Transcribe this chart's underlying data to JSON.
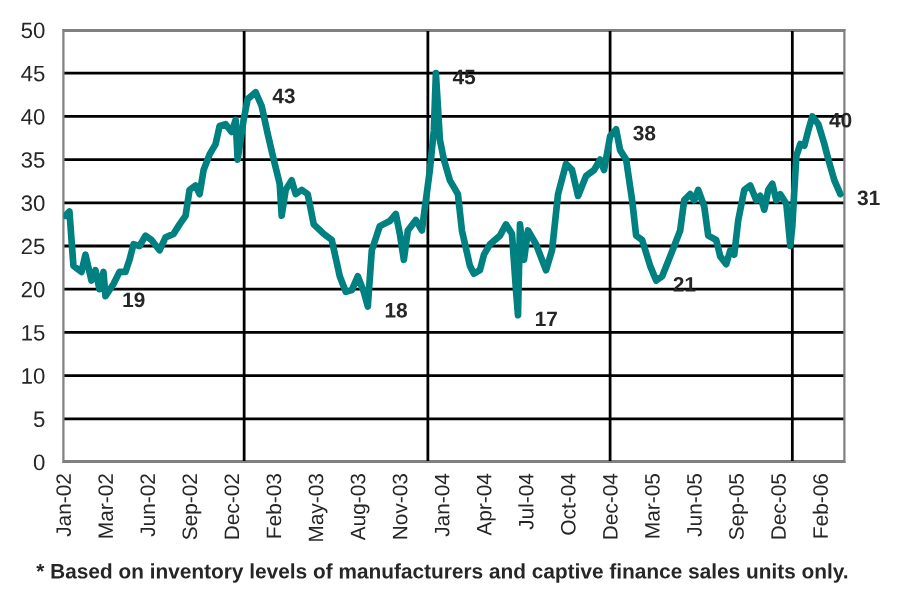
{
  "chart_data": {
    "type": "line",
    "x": [
      "2002-01-04",
      "2002-01-12",
      "2002-01-20",
      "2002-02-05",
      "2002-02-13",
      "2002-02-25",
      "2002-03-05",
      "2002-03-13",
      "2002-03-21",
      "2002-03-25",
      "2002-04-10",
      "2002-04-22",
      "2002-05-04",
      "2002-05-12",
      "2002-05-20",
      "2002-06-01",
      "2002-06-13",
      "2002-06-25",
      "2002-07-11",
      "2002-07-23",
      "2002-08-08",
      "2002-08-20",
      "2002-09-01",
      "2002-09-09",
      "2002-09-21",
      "2002-09-29",
      "2002-10-07",
      "2002-10-19",
      "2002-10-31",
      "2002-11-08",
      "2002-11-20",
      "2002-12-02",
      "2002-12-10",
      "2002-12-14",
      "2002-12-26",
      "2003-01-03",
      "2003-01-19",
      "2003-01-31",
      "2003-02-12",
      "2003-02-24",
      "2003-03-08",
      "2003-03-12",
      "2003-03-20",
      "2003-04-01",
      "2003-04-09",
      "2003-04-21",
      "2003-05-03",
      "2003-05-15",
      "2003-06-04",
      "2003-06-20",
      "2003-07-06",
      "2003-07-18",
      "2003-07-30",
      "2003-08-11",
      "2003-08-23",
      "2003-08-31",
      "2003-09-08",
      "2003-09-24",
      "2003-10-14",
      "2003-10-26",
      "2003-11-03",
      "2003-11-11",
      "2003-11-19",
      "2003-12-05",
      "2003-12-17",
      "2003-12-25",
      "2004-01-02",
      "2004-01-10",
      "2004-01-14",
      "2004-01-22",
      "2004-01-30",
      "2004-02-11",
      "2004-02-27",
      "2004-03-06",
      "2004-03-22",
      "2004-03-30",
      "2004-04-11",
      "2004-04-19",
      "2004-05-01",
      "2004-05-21",
      "2004-06-02",
      "2004-06-14",
      "2004-06-22",
      "2004-06-26",
      "2004-06-30",
      "2004-07-08",
      "2004-07-16",
      "2004-08-01",
      "2004-08-21",
      "2004-09-02",
      "2004-09-14",
      "2004-09-30",
      "2004-10-12",
      "2004-10-24",
      "2004-11-09",
      "2004-11-25",
      "2004-12-07",
      "2004-12-15",
      "2004-12-27",
      "2005-01-08",
      "2005-01-16",
      "2005-01-28",
      "2005-02-09",
      "2005-02-17",
      "2005-03-01",
      "2005-03-17",
      "2005-03-29",
      "2005-04-10",
      "2005-04-26",
      "2005-05-16",
      "2005-05-24",
      "2005-06-05",
      "2005-06-13",
      "2005-06-21",
      "2005-07-03",
      "2005-07-11",
      "2005-07-27",
      "2005-08-04",
      "2005-08-16",
      "2005-08-24",
      "2005-09-01",
      "2005-09-09",
      "2005-09-21",
      "2005-10-03",
      "2005-10-15",
      "2005-10-23",
      "2005-10-31",
      "2005-11-08",
      "2005-11-16",
      "2005-11-24",
      "2005-12-02",
      "2005-12-14",
      "2005-12-22",
      "2005-12-26",
      "2006-01-03",
      "2006-01-11",
      "2006-01-19",
      "2006-01-27",
      "2006-02-04",
      "2006-02-16",
      "2006-02-28",
      "2006-03-08",
      "2006-03-20",
      "2006-04-01"
    ],
    "series": [
      {
        "color": "#008080",
        "values": [
          28.5,
          29.0,
          22.7,
          22.0,
          24.0,
          21.0,
          22.2,
          20.0,
          22.0,
          19.2,
          20.6,
          22.0,
          22.0,
          23.4,
          25.2,
          25.0,
          26.2,
          25.7,
          24.5,
          26.0,
          26.4,
          27.5,
          28.5,
          31.5,
          32.0,
          31.0,
          33.8,
          35.6,
          36.8,
          38.9,
          39.1,
          38.2,
          39.6,
          35.0,
          39.6,
          42.0,
          42.8,
          41.2,
          38.0,
          35.0,
          32.2,
          28.5,
          31.5,
          32.6,
          31.0,
          31.5,
          31.0,
          27.5,
          26.4,
          25.7,
          21.5,
          19.7,
          19.9,
          21.5,
          19.7,
          18.0,
          24.5,
          27.3,
          27.9,
          28.7,
          26.4,
          23.4,
          26.8,
          28.0,
          26.8,
          30.3,
          33.8,
          38.4,
          45.0,
          37.3,
          35.0,
          32.6,
          31.0,
          26.8,
          22.7,
          21.8,
          22.2,
          24.0,
          25.2,
          26.2,
          27.5,
          26.4,
          19.9,
          17.0,
          27.5,
          23.4,
          26.8,
          25.2,
          22.2,
          24.5,
          31.0,
          34.5,
          33.8,
          30.8,
          33.1,
          33.8,
          35.0,
          33.8,
          37.7,
          38.5,
          36.1,
          35.0,
          30.3,
          26.2,
          25.7,
          22.7,
          21.0,
          21.5,
          23.8,
          26.8,
          30.3,
          31.0,
          30.3,
          31.5,
          29.6,
          26.2,
          25.7,
          23.8,
          22.9,
          24.5,
          24.0,
          28.0,
          31.5,
          32.0,
          30.3,
          30.8,
          29.2,
          31.5,
          32.2,
          30.3,
          31.0,
          29.9,
          25.0,
          27.3,
          35.4,
          36.8,
          36.6,
          38.4,
          40.0,
          39.1,
          36.8,
          35.0,
          32.6,
          31.0
        ]
      }
    ],
    "xlim": [
      "2001-12-31",
      "2006-04-09"
    ],
    "xticks": [
      {
        "value": "2002-01-04",
        "label": "Jan-02"
      },
      {
        "value": "2002-03-29",
        "label": "Mar-02"
      },
      {
        "value": "2002-06-21",
        "label": "Jun-02"
      },
      {
        "value": "2002-09-13",
        "label": "Sep-02"
      },
      {
        "value": "2002-12-06",
        "label": "Dec-02"
      },
      {
        "value": "2003-02-28",
        "label": "Feb-03"
      },
      {
        "value": "2003-05-23",
        "label": "May-03"
      },
      {
        "value": "2003-08-15",
        "label": "Aug-03"
      },
      {
        "value": "2003-11-07",
        "label": "Nov-03"
      },
      {
        "value": "2004-01-30",
        "label": "Jan-04"
      },
      {
        "value": "2004-04-23",
        "label": "Apr-04"
      },
      {
        "value": "2004-07-16",
        "label": "Jul-04"
      },
      {
        "value": "2004-10-08",
        "label": "Oct-04"
      },
      {
        "value": "2004-12-31",
        "label": "Dec-04"
      },
      {
        "value": "2005-03-25",
        "label": "Mar-05"
      },
      {
        "value": "2005-06-17",
        "label": "Jun-05"
      },
      {
        "value": "2005-09-09",
        "label": "Sep-05"
      },
      {
        "value": "2005-12-02",
        "label": "Dec-05"
      },
      {
        "value": "2006-02-24",
        "label": "Feb-06"
      }
    ],
    "ylim": [
      0,
      50
    ],
    "yticks": [
      0,
      5,
      10,
      15,
      20,
      25,
      30,
      35,
      40,
      45,
      50
    ],
    "grid": "y",
    "line_style": "solid",
    "marker": "none",
    "ref_lines": [
      {
        "axis": "x",
        "value": "2002-12-27",
        "color": "#000000"
      },
      {
        "axis": "x",
        "value": "2003-12-29",
        "color": "#000000"
      },
      {
        "axis": "x",
        "value": "2004-12-27",
        "color": "#000000"
      },
      {
        "axis": "x",
        "value": "2005-12-26",
        "color": "#000000"
      }
    ],
    "annotations": [
      {
        "text": "19",
        "x": "2002-03-25",
        "y": 19.2
      },
      {
        "text": "43",
        "x": "2003-01-19",
        "y": 42.8
      },
      {
        "text": "18",
        "x": "2003-08-31",
        "y": 18.0
      },
      {
        "text": "45",
        "x": "2004-01-14",
        "y": 45.0
      },
      {
        "text": "17",
        "x": "2004-06-26",
        "y": 17.0
      },
      {
        "text": "38",
        "x": "2005-01-08",
        "y": 38.5
      },
      {
        "text": "21",
        "x": "2005-03-29",
        "y": 21.0
      },
      {
        "text": "40",
        "x": "2006-02-04",
        "y": 40.0
      },
      {
        "text": "31",
        "x": "2006-04-01",
        "y": 31.0
      },
      "* Based on inventory levels of manufacturers and captive finance sales units only."
    ]
  }
}
